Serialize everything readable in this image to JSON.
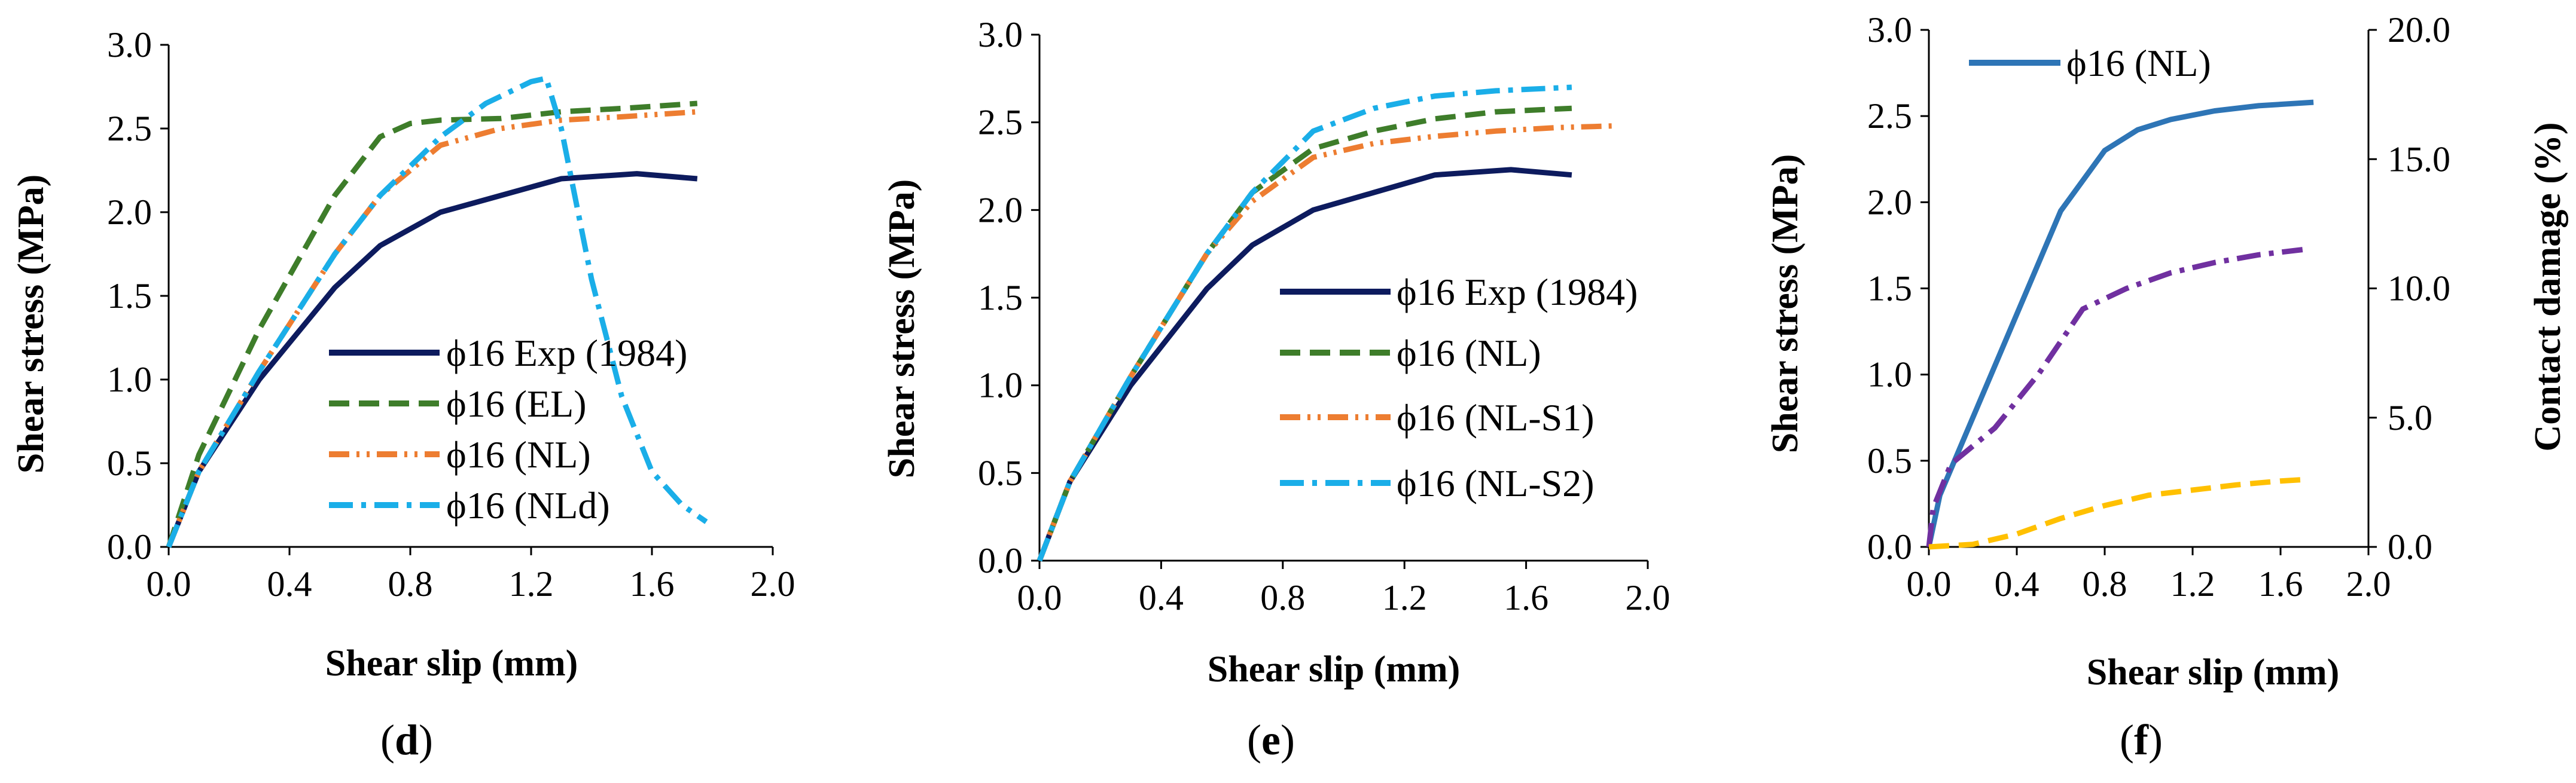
{
  "figure": {
    "panels": [
      {
        "tag_open": "(",
        "tag_letter": "d",
        "tag_close": ")"
      },
      {
        "tag_open": "(",
        "tag_letter": "e",
        "tag_close": ")"
      },
      {
        "tag_open": "(",
        "tag_letter": "f",
        "tag_close": ")"
      }
    ]
  },
  "chart_data": [
    {
      "type": "line",
      "panel": "d",
      "xlabel": "Shear slip (mm)",
      "ylabel": "Shear stress (MPa)",
      "xlim": [
        0,
        2.0
      ],
      "ylim": [
        0,
        3.0
      ],
      "xticks": [
        "0.0",
        "0.4",
        "0.8",
        "1.2",
        "1.6",
        "2.0"
      ],
      "yticks": [
        "0.0",
        "0.5",
        "1.0",
        "1.5",
        "2.0",
        "2.5",
        "3.0"
      ],
      "legend_position": "lower-center",
      "series": [
        {
          "name": "ϕ16 Exp (1984)",
          "color": "#0d1b5e",
          "style": "solid",
          "x": [
            0,
            0.1,
            0.3,
            0.55,
            0.7,
            0.9,
            1.1,
            1.3,
            1.55,
            1.75
          ],
          "y": [
            0,
            0.45,
            1.0,
            1.55,
            1.8,
            2.0,
            2.1,
            2.2,
            2.23,
            2.2
          ]
        },
        {
          "name": "ϕ16 (EL)",
          "color": "#3e7d2a",
          "style": "dash",
          "x": [
            0,
            0.1,
            0.3,
            0.55,
            0.7,
            0.8,
            0.9,
            1.1,
            1.3,
            1.5,
            1.75
          ],
          "y": [
            0,
            0.55,
            1.3,
            2.1,
            2.45,
            2.53,
            2.55,
            2.56,
            2.6,
            2.62,
            2.65
          ]
        },
        {
          "name": "ϕ16 (NL)",
          "color": "#ed7d31",
          "style": "dashdotdot",
          "x": [
            0,
            0.1,
            0.3,
            0.55,
            0.7,
            0.9,
            1.1,
            1.3,
            1.5,
            1.75
          ],
          "y": [
            0,
            0.45,
            1.05,
            1.75,
            2.1,
            2.4,
            2.5,
            2.55,
            2.57,
            2.6
          ]
        },
        {
          "name": "ϕ16 (NLd)",
          "color": "#1aaee8",
          "style": "dashdot",
          "x": [
            0,
            0.1,
            0.3,
            0.55,
            0.7,
            0.9,
            1.05,
            1.2,
            1.25,
            1.3,
            1.4,
            1.5,
            1.6,
            1.7,
            1.78
          ],
          "y": [
            0,
            0.45,
            1.05,
            1.75,
            2.1,
            2.45,
            2.65,
            2.78,
            2.8,
            2.5,
            1.6,
            0.9,
            0.45,
            0.25,
            0.15
          ]
        }
      ]
    },
    {
      "type": "line",
      "panel": "e",
      "xlabel": "Shear slip (mm)",
      "ylabel": "Shear stress (MPa)",
      "xlim": [
        0,
        2.0
      ],
      "ylim": [
        0,
        3.0
      ],
      "xticks": [
        "0.0",
        "0.4",
        "0.8",
        "1.2",
        "1.6",
        "2.0"
      ],
      "yticks": [
        "0.0",
        "0.5",
        "1.0",
        "1.5",
        "2.0",
        "2.5",
        "3.0"
      ],
      "legend_position": "lower-right",
      "series": [
        {
          "name": "ϕ16 Exp (1984)",
          "color": "#0d1b5e",
          "style": "solid",
          "x": [
            0,
            0.1,
            0.3,
            0.55,
            0.7,
            0.9,
            1.1,
            1.3,
            1.55,
            1.75
          ],
          "y": [
            0,
            0.45,
            1.0,
            1.55,
            1.8,
            2.0,
            2.1,
            2.2,
            2.23,
            2.2
          ]
        },
        {
          "name": "ϕ16 (NL)",
          "color": "#3e7d2a",
          "style": "dash",
          "x": [
            0,
            0.1,
            0.3,
            0.55,
            0.7,
            0.9,
            1.1,
            1.3,
            1.5,
            1.75
          ],
          "y": [
            0,
            0.45,
            1.05,
            1.75,
            2.1,
            2.35,
            2.45,
            2.52,
            2.56,
            2.58
          ]
        },
        {
          "name": "ϕ16 (NL-S1)",
          "color": "#ed7d31",
          "style": "dashdotdot",
          "x": [
            0,
            0.1,
            0.3,
            0.55,
            0.7,
            0.9,
            1.1,
            1.3,
            1.5,
            1.7,
            1.9
          ],
          "y": [
            0,
            0.45,
            1.05,
            1.75,
            2.05,
            2.3,
            2.38,
            2.42,
            2.45,
            2.47,
            2.48
          ]
        },
        {
          "name": "ϕ16 (NL-S2)",
          "color": "#1aaee8",
          "style": "dashdot",
          "x": [
            0,
            0.1,
            0.3,
            0.55,
            0.7,
            0.9,
            1.1,
            1.3,
            1.5,
            1.75
          ],
          "y": [
            0,
            0.45,
            1.05,
            1.75,
            2.1,
            2.45,
            2.58,
            2.65,
            2.68,
            2.7
          ]
        }
      ]
    },
    {
      "type": "line",
      "panel": "f",
      "xlabel": "Shear slip (mm)",
      "ylabel": "Shear stress (MPa)",
      "y2label": "Contact damage (%)",
      "xlim": [
        0,
        2.0
      ],
      "ylim": [
        0,
        3.0
      ],
      "y2lim": [
        0,
        20.0
      ],
      "xticks": [
        "0.0",
        "0.4",
        "0.8",
        "1.2",
        "1.6",
        "2.0"
      ],
      "yticks": [
        "0.0",
        "0.5",
        "1.0",
        "1.5",
        "2.0",
        "2.5",
        "3.0"
      ],
      "y2ticks": [
        "0.0",
        "5.0",
        "10.0",
        "15.0",
        "20.0"
      ],
      "legend_position": "top-left",
      "series": [
        {
          "name": "ϕ16 (NL)",
          "color": "#2e75b6",
          "style": "solid",
          "axis": "left",
          "x": [
            0,
            0.05,
            0.2,
            0.4,
            0.6,
            0.8,
            0.95,
            1.1,
            1.3,
            1.5,
            1.75
          ],
          "y": [
            0,
            0.3,
            0.75,
            1.35,
            1.95,
            2.3,
            2.42,
            2.48,
            2.53,
            2.56,
            2.58
          ]
        },
        {
          "color": "#7030a0",
          "style": "dashdot",
          "axis": "right",
          "x": [
            0,
            0.02,
            0.1,
            0.3,
            0.5,
            0.7,
            0.9,
            1.1,
            1.3,
            1.5,
            1.7
          ],
          "y": [
            0,
            1.5,
            3.2,
            4.6,
            6.7,
            9.2,
            10.0,
            10.6,
            11.0,
            11.3,
            11.5
          ]
        },
        {
          "color": "#ffc000",
          "style": "dash",
          "axis": "right",
          "x": [
            0,
            0.2,
            0.4,
            0.6,
            0.8,
            1.0,
            1.2,
            1.4,
            1.6,
            1.7
          ],
          "y": [
            0,
            0.1,
            0.5,
            1.1,
            1.6,
            2.0,
            2.2,
            2.4,
            2.55,
            2.6
          ]
        }
      ]
    }
  ]
}
